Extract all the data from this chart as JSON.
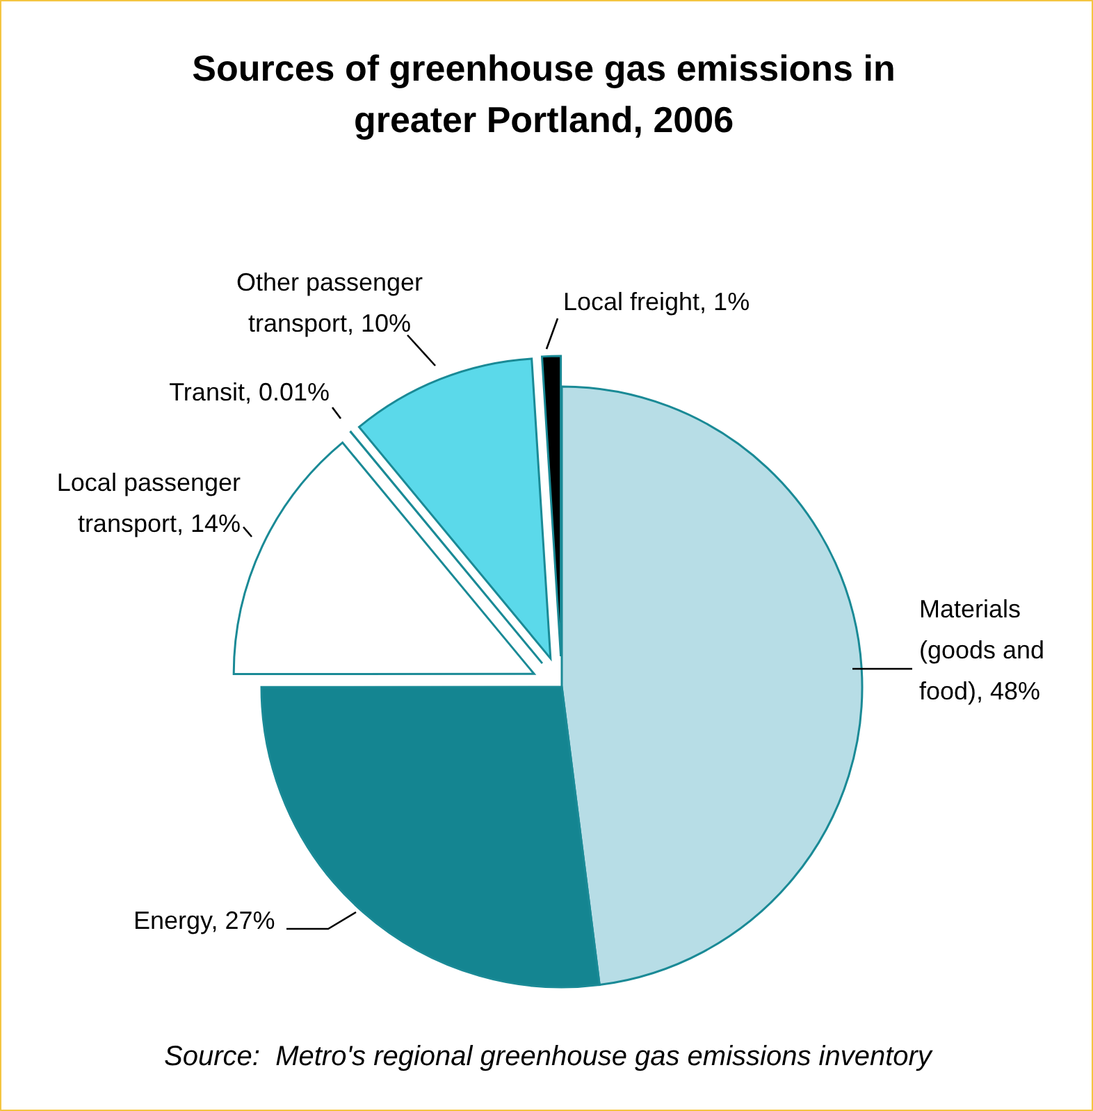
{
  "chart_data": {
    "type": "pie",
    "title": "Sources of greenhouse gas emissions in greater Portland, 2006",
    "categories": [
      "Materials (goods and food)",
      "Energy",
      "Local passenger transport",
      "Transit",
      "Other passenger transport",
      "Local freight"
    ],
    "values": [
      48,
      27,
      14,
      0.01,
      10,
      1
    ],
    "value_labels": [
      "48%",
      "27%",
      "14%",
      "0.01%",
      "10%",
      "1%"
    ],
    "colors": [
      "#b7dde6",
      "#148591",
      "#ffffff",
      "#ffffff",
      "#5bd9ea",
      "#000000"
    ],
    "annotations": [
      "Source:  Metro's regional greenhouse gas emissions inventory"
    ],
    "legend": false
  }
}
